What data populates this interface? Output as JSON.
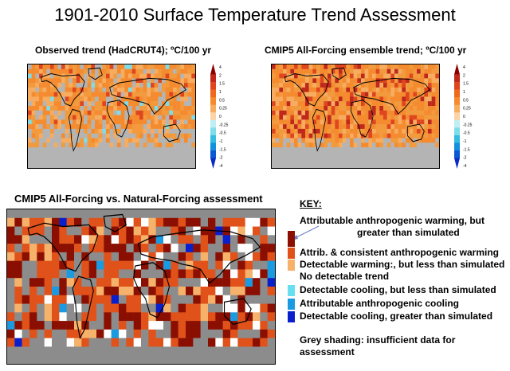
{
  "title": "1901-2010 Surface Temperature Trend Assessment",
  "panels": {
    "observed": {
      "title": "Observed trend  (HadCRUT4); ºC/100 yr"
    },
    "cmip5": {
      "title": "CMIP5 All-Forcing ensemble trend; ºC/100 yr"
    },
    "assessment": {
      "title": "CMIP5 All-Forcing vs. Natural-Forcing  assessment"
    }
  },
  "colorbar": {
    "ticks": [
      "4",
      "2",
      "1.5",
      "1",
      "0.5",
      "0.25",
      "0",
      "-0.25",
      "-0.5",
      "-1",
      "-1.5",
      "-2",
      "-4"
    ],
    "colors": [
      "#8b0000",
      "#c0281b",
      "#e0461e",
      "#ee6a1e",
      "#f58b2e",
      "#f8ac5f",
      "#fbd3a6",
      "#bfeef3",
      "#7fdde8",
      "#34bde0",
      "#1390dc",
      "#0a58d4",
      "#0a2bc4"
    ]
  },
  "key": {
    "heading": "KEY:",
    "entries": [
      {
        "line1": "Attributable anthropogenic warming, but",
        "line2": "greater than simulated",
        "color": "#8b0f00"
      },
      {
        "line1": "Attrib. & consistent  anthropogenic warming",
        "color": "#e0521a"
      },
      {
        "line1": "Detectable warming:, but less than simulated",
        "color": "#f6b26b"
      },
      {
        "line1": "No detectable trend",
        "color": "#ffffff"
      },
      {
        "line1": "Detectable cooling, but less than simulated",
        "color": "#66e0f0"
      },
      {
        "line1": "Attributable anthropogenic cooling",
        "color": "#1a9ae0"
      },
      {
        "line1": "Detectable  cooling, greater than simulated",
        "color": "#0a1fcc"
      }
    ],
    "grey_note": "Grey shading:  insufficient data for assessment"
  },
  "colors": {
    "no_data": "#b4b4b4",
    "assessment_grey": "#8c8c8c",
    "coast": "#000000"
  }
}
